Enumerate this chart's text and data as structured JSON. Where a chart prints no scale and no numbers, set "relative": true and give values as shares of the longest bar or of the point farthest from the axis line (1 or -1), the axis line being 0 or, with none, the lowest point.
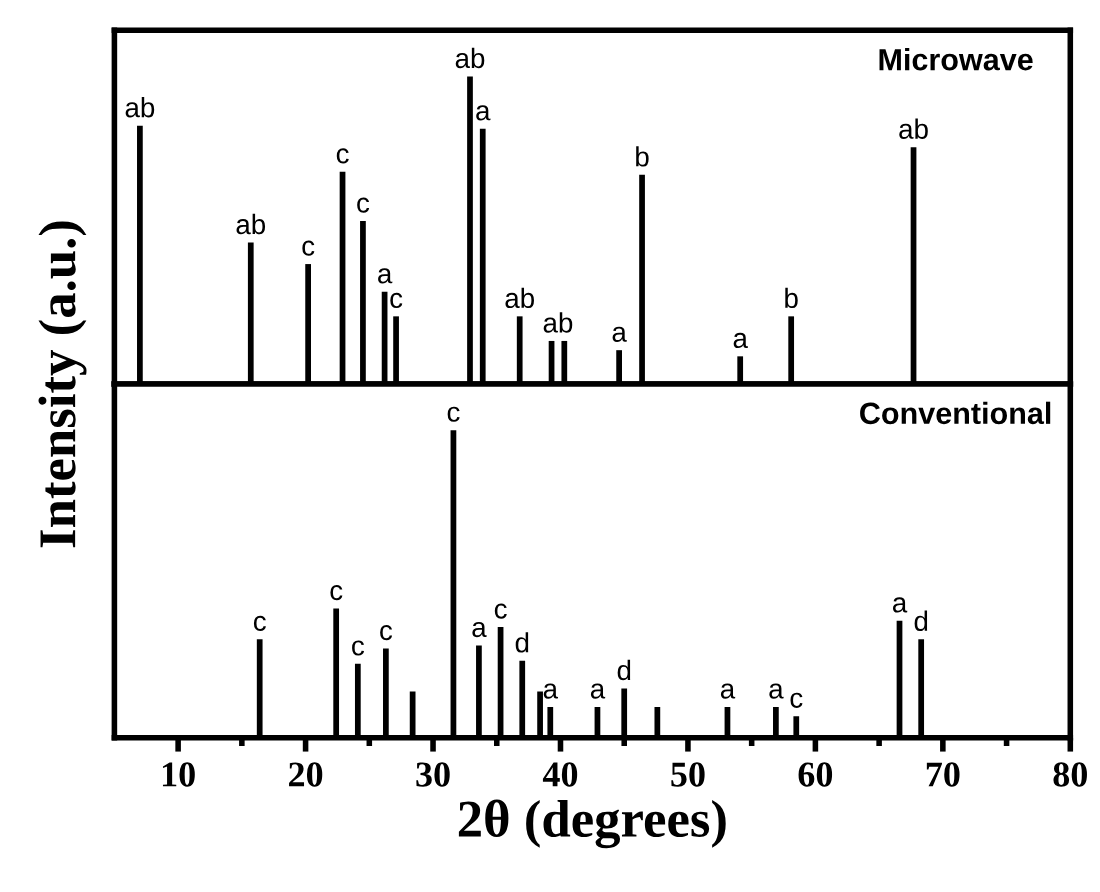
{
  "chart_data": [
    {
      "type": "bar",
      "title": "Microwave",
      "ylabel": "Intensity (a.u.)",
      "relative": true,
      "xlim": [
        5,
        80
      ],
      "tick_labels": false,
      "color": "#000000",
      "x": [
        7.0,
        15.7,
        20.2,
        22.9,
        24.5,
        26.2,
        27.1,
        32.9,
        33.9,
        36.8,
        39.3,
        40.3,
        44.6,
        46.4,
        54.1,
        58.1,
        67.7
      ],
      "values": [
        0.84,
        0.46,
        0.39,
        0.69,
        0.53,
        0.3,
        0.22,
        1,
        0.83,
        0.22,
        0.14,
        0.14,
        0.11,
        0.68,
        0.09,
        0.22,
        0.77
      ],
      "annotations": [
        {
          "text": "ab",
          "x": 7.0,
          "y": 0.84
        },
        {
          "text": "ab",
          "x": 15.7,
          "y": 0.46
        },
        {
          "text": "c",
          "x": 20.2,
          "y": 0.39
        },
        {
          "text": "c",
          "x": 22.9,
          "y": 0.69
        },
        {
          "text": "c",
          "x": 24.5,
          "y": 0.53
        },
        {
          "text": "a",
          "x": 26.2,
          "y": 0.3
        },
        {
          "text": "c",
          "x": 27.1,
          "y": 0.22
        },
        {
          "text": "ab",
          "x": 32.9,
          "y": 1
        },
        {
          "text": "a",
          "x": 33.9,
          "y": 0.83
        },
        {
          "text": "ab",
          "x": 36.8,
          "y": 0.22
        },
        {
          "text": "ab",
          "x": 39.8,
          "y": 0.14
        },
        {
          "text": "a",
          "x": 44.6,
          "y": 0.11
        },
        {
          "text": "b",
          "x": 46.4,
          "y": 0.68
        },
        {
          "text": "a",
          "x": 54.1,
          "y": 0.09
        },
        {
          "text": "b",
          "x": 58.1,
          "y": 0.22
        },
        {
          "text": "ab",
          "x": 67.7,
          "y": 0.77
        }
      ]
    },
    {
      "type": "bar",
      "title": "Conventional",
      "xlabel": "2θ (degrees)",
      "relative": true,
      "xlim": [
        5,
        80
      ],
      "xticks": [
        10,
        20,
        30,
        40,
        50,
        60,
        70,
        80
      ],
      "tick_labels": "x",
      "color": "#000000",
      "x": [
        16.4,
        22.4,
        24.1,
        26.3,
        28.4,
        31.6,
        33.6,
        35.3,
        37.0,
        38.4,
        39.2,
        42.9,
        45.0,
        47.6,
        53.1,
        56.9,
        58.5,
        66.6,
        68.3
      ],
      "values": [
        0.32,
        0.42,
        0.24,
        0.29,
        0.15,
        1,
        0.3,
        0.36,
        0.25,
        0.15,
        0.1,
        0.1,
        0.16,
        0.1,
        0.1,
        0.1,
        0.07,
        0.38,
        0.32
      ],
      "annotations": [
        {
          "text": "c",
          "x": 16.4,
          "y": 0.32
        },
        {
          "text": "c",
          "x": 22.4,
          "y": 0.42
        },
        {
          "text": "c",
          "x": 24.1,
          "y": 0.24
        },
        {
          "text": "c",
          "x": 26.3,
          "y": 0.29
        },
        {
          "text": "c",
          "x": 31.6,
          "y": 1
        },
        {
          "text": "a",
          "x": 33.6,
          "y": 0.3
        },
        {
          "text": "c",
          "x": 35.3,
          "y": 0.36
        },
        {
          "text": "d",
          "x": 37.0,
          "y": 0.25
        },
        {
          "text": "a",
          "x": 39.2,
          "y": 0.1
        },
        {
          "text": "a",
          "x": 42.9,
          "y": 0.1
        },
        {
          "text": "d",
          "x": 45.0,
          "y": 0.16
        },
        {
          "text": "a",
          "x": 53.1,
          "y": 0.1
        },
        {
          "text": "a",
          "x": 56.9,
          "y": 0.1
        },
        {
          "text": "c",
          "x": 58.5,
          "y": 0.07
        },
        {
          "text": "a",
          "x": 66.6,
          "y": 0.38
        },
        {
          "text": "d",
          "x": 68.3,
          "y": 0.32
        }
      ]
    }
  ]
}
